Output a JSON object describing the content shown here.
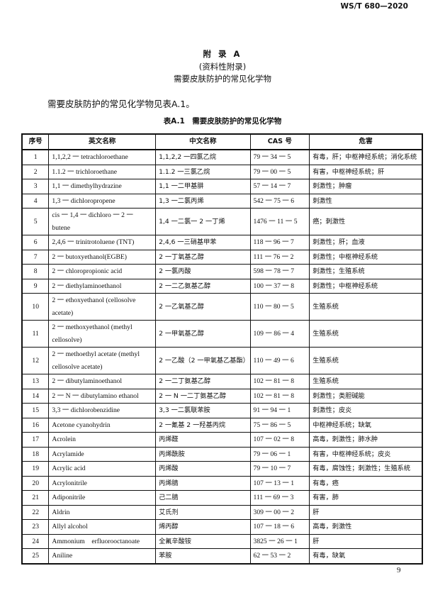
{
  "header": {
    "standard": "WS/T 680—2020"
  },
  "title": {
    "appendix": "附 录 A",
    "note": "(资料性附录)",
    "name": "需要皮肤防护的常见化学物"
  },
  "intro": "需要皮肤防护的常见化学物见表A.1。",
  "table": {
    "caption": "表A.1　需要皮肤防护的常见化学物",
    "columns": [
      "序号",
      "英文名称",
      "中文名称",
      "CAS 号",
      "危害"
    ],
    "rows": [
      [
        "1",
        "1,1,2,2 一 tetrachloroethane",
        "1,1,2,2 一四氯乙烷",
        "79 一 34 一 5",
        "有毒，肝；中枢神经系统；消化系统"
      ],
      [
        "2",
        "1.1.2 一 trichloroethane",
        "1.1.2 一三氯乙烷",
        "79 一 00 一 5",
        "有害，中枢神经系统；肝"
      ],
      [
        "3",
        "1,1 一 dimethylhydrazine",
        "1,1 一二甲基肼",
        "57 一 14 一 7",
        "刺激性；肿瘤"
      ],
      [
        "4",
        "1,3 一 dichloropropene",
        "1,3 一二氯丙烯",
        "542 一 75 一 6",
        "刺激性"
      ],
      [
        "5",
        "cis 一 1,4 一 dichloro 一 2 一 butene",
        "1,4 一二氯一 2 一丁烯",
        "1476 一 11 一 5",
        "癌；刺激性"
      ],
      [
        "6",
        "2,4,6 一 trinitrotoluene (TNT)",
        "2,4,6 一三硝基甲苯",
        "118 一 96 一 7",
        "刺激性；肝；血液"
      ],
      [
        "7",
        "2 一 butoxyethanol(EGBE)",
        "2 一丁氧基乙醇",
        "111 一 76 一 2",
        "刺激性；中枢神经系统"
      ],
      [
        "8",
        "2 一 chloropropionic acid",
        "2 一氯丙酸",
        "598 一 78 一 7",
        "刺激性；生殖系统"
      ],
      [
        "9",
        "2 一 diethylaminoethanol",
        "2 一二乙氨基乙醇",
        "100 一 37 一 8",
        "刺激性；中枢神经系统"
      ],
      [
        "10",
        "2 一 ethoxyethanol (cellosolve acetate)",
        "2 一乙氧基乙醇",
        "110 一 80 一 5",
        "生殖系统"
      ],
      [
        "11",
        "2 一 methoxyethanol (methyl cellosolve)",
        "2 一甲氧基乙醇",
        "109 一 86 一 4",
        "生殖系统"
      ],
      [
        "12",
        "2 一 methoethyl acetate (methyl cellosolve acetate)",
        "2 一乙酸（2 一甲氧基乙基酯）",
        "110 一 49 一 6",
        "生殖系统"
      ],
      [
        "13",
        "2 一 dibutylaminoethanol",
        "2 一二丁氨基乙醇",
        "102 一 81 一 8",
        "生殖系统"
      ],
      [
        "14",
        "2 一 N 一 dibutylamino ethanol",
        "2 一 N 一二丁氨基乙醇",
        "102 一 81 一 8",
        "刺激性；类胆碱能"
      ],
      [
        "15",
        "3,3 一 dichlorobenzidine",
        "3,3 一二氯联苯胺",
        "91 一 94 一 1",
        "刺激性；皮炎"
      ],
      [
        "16",
        "Acetone cyanohydrin",
        "2 一氰基 2 一羟基丙烷",
        "75 一 86 一 5",
        "中枢神经系统；缺氧"
      ],
      [
        "17",
        "Acrolein",
        "丙烯醛",
        "107 一 02 一 8",
        "高毒，刺激性；肺水肿"
      ],
      [
        "18",
        "Acrylamide",
        "丙烯酰胺",
        "79 一 06 一 1",
        "有害，中枢神经系统；皮炎"
      ],
      [
        "19",
        "Acrylic acid",
        "丙烯酸",
        "79 一 10 一 7",
        "有毒，腐蚀性；刺激性；生殖系统"
      ],
      [
        "20",
        "Acrylonitrile",
        "丙烯腈",
        "107 一 13 一 1",
        "有毒，癌"
      ],
      [
        "21",
        "Adiponitrile",
        "己二腈",
        "111 一 69 一 3",
        "有害，肺"
      ],
      [
        "22",
        "Aldrin",
        "艾氏剂",
        "309 一 00 一 2",
        "肝"
      ],
      [
        "23",
        "Allyl alcohol",
        "烯丙醇",
        "107 一 18 一 6",
        "高毒，刺激性"
      ],
      [
        "24",
        "Ammonium　erfluorooctanoate",
        "全氟辛酸铵",
        "3825 一 26 一 1",
        "肝"
      ],
      [
        "25",
        "Aniline",
        "苯胺",
        "62 一 53 一 2",
        "有毒，缺氧"
      ]
    ]
  },
  "page_number": "9"
}
